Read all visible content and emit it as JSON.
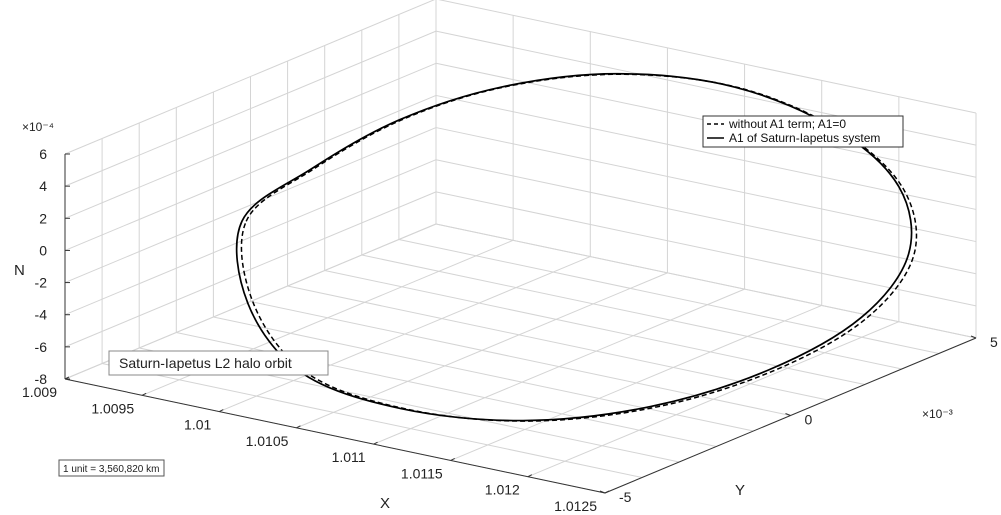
{
  "chart_data": {
    "type": "line",
    "projection": "3d",
    "xlabel": "X",
    "ylabel": "Y",
    "zlabel": "N",
    "xlim": [
      1.009,
      1.0125
    ],
    "ylim": [
      -0.005,
      0.005
    ],
    "zlim": [
      -0.0008,
      0.0006
    ],
    "x_ticks": [
      "1.009",
      "1.0095",
      "1.01",
      "1.0105",
      "1.011",
      "1.0115",
      "1.012",
      "1.0125"
    ],
    "y_ticks": [
      "-5",
      "0",
      "5"
    ],
    "y_exponent": "×10⁻³",
    "z_ticks": [
      "-8",
      "-6",
      "-4",
      "-2",
      "0",
      "2",
      "4",
      "6"
    ],
    "z_exponent": "×10⁻⁴",
    "grid": true,
    "legend_position": "top-right",
    "series": [
      {
        "name": "without A1 term; A1=0",
        "style": "dashed",
        "color": "#000000",
        "x": [
          1.00953,
          1.00958,
          1.00975,
          1.01005,
          1.01052,
          1.0111,
          1.0117,
          1.01222,
          1.01255,
          1.01262,
          1.01243,
          1.01205,
          1.01153,
          1.01093,
          1.01035,
          1.00985,
          1.00953
        ],
        "y": [
          -0.00232,
          -0.00072,
          0.00095,
          0.00245,
          0.00365,
          0.00442,
          0.00462,
          0.00418,
          0.00312,
          0.00155,
          -0.00015,
          -0.00175,
          -0.00302,
          -0.00382,
          -0.00408,
          -0.00345,
          -0.00232
        ],
        "z": [
          3e-05,
          0.00021,
          0.00039,
          0.00051,
          0.00057,
          0.00053,
          0.00037,
          0.00016,
          -9e-05,
          -0.00032,
          -0.00052,
          -0.00067,
          -0.00074,
          -0.00071,
          -0.00058,
          -0.00031,
          3e-05
        ]
      },
      {
        "name": "A1 of Saturn-Iapetus system",
        "style": "solid",
        "color": "#000000",
        "x": [
          1.00951,
          1.00957,
          1.00974,
          1.01004,
          1.0105,
          1.01108,
          1.01169,
          1.0122,
          1.01252,
          1.01259,
          1.0124,
          1.01202,
          1.0115,
          1.0109,
          1.01032,
          1.00982,
          1.00951
        ],
        "y": [
          -0.00235,
          -0.00075,
          0.00093,
          0.00244,
          0.00364,
          0.00441,
          0.00461,
          0.00417,
          0.0031,
          0.00153,
          -0.00017,
          -0.00178,
          -0.00305,
          -0.00385,
          -0.00411,
          -0.00348,
          -0.00235
        ],
        "z": [
          3e-05,
          0.00021,
          0.00039,
          0.00051,
          0.00057,
          0.00053,
          0.00037,
          0.00016,
          -9e-05,
          -0.00032,
          -0.00052,
          -0.00067,
          -0.00074,
          -0.00071,
          -0.00058,
          -0.00031,
          3e-05
        ]
      }
    ],
    "annotations": [
      "Saturn-Iapetus L2 halo orbit",
      "1 unit = 3,560,820 km"
    ]
  }
}
